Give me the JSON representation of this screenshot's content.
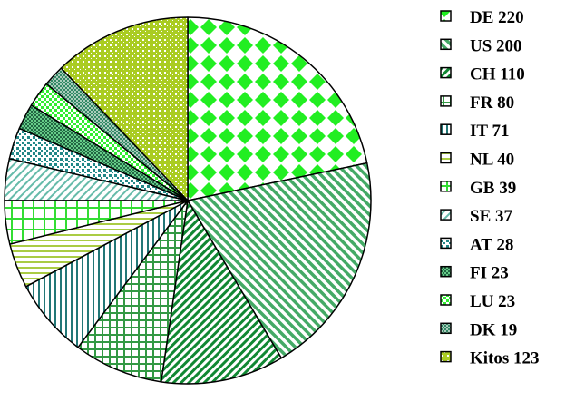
{
  "chart_data": {
    "type": "pie",
    "start_angle_deg": 0,
    "direction": "clockwise",
    "legend_position": "right",
    "slices": [
      {
        "label": "DE",
        "value": 220,
        "legend": "DE 220",
        "pattern": "diamonds",
        "fg": "#22ee22",
        "bg": "#ffffff"
      },
      {
        "label": "US",
        "value": 200,
        "legend": "US 200",
        "pattern": "diag-up",
        "fg": "#44aa66",
        "bg": "#ffffff"
      },
      {
        "label": "CH",
        "value": 110,
        "legend": "CH 110",
        "pattern": "diag-down-dense",
        "fg": "#118833",
        "bg": "#ffffff"
      },
      {
        "label": "FR",
        "value": 80,
        "legend": "FR 80",
        "pattern": "grid",
        "fg": "#339944",
        "bg": "#ffffff"
      },
      {
        "label": "IT",
        "value": 71,
        "legend": "IT 71",
        "pattern": "vertical",
        "fg": "#227777",
        "bg": "#ffffff"
      },
      {
        "label": "NL",
        "value": 40,
        "legend": "NL 40",
        "pattern": "horizontal",
        "fg": "#aacc44",
        "bg": "#ffffff"
      },
      {
        "label": "GB",
        "value": 39,
        "legend": "GB 39",
        "pattern": "grid-wide",
        "fg": "#33dd33",
        "bg": "#ffffff"
      },
      {
        "label": "SE",
        "value": 37,
        "legend": "SE 37",
        "pattern": "diag-down-light",
        "fg": "#66bbaa",
        "bg": "#ffffff"
      },
      {
        "label": "AT",
        "value": 28,
        "legend": "AT 28",
        "pattern": "dots-dark",
        "fg": "#228888",
        "bg": "#ffffff"
      },
      {
        "label": "FI",
        "value": 23,
        "legend": "FI 23",
        "pattern": "checker-dark",
        "fg": "#226644",
        "bg": "#66cc88"
      },
      {
        "label": "LU",
        "value": 23,
        "legend": "LU 23",
        "pattern": "checker",
        "fg": "#33ee33",
        "bg": "#ffffff"
      },
      {
        "label": "DK",
        "value": 19,
        "legend": "DK 19",
        "pattern": "checker-fine",
        "fg": "#338866",
        "bg": "#aaccbb"
      },
      {
        "label": "Kitos",
        "value": 123,
        "legend": "Kitos 123",
        "pattern": "dots-olive",
        "fg": "#ffffff",
        "bg": "#aacc22"
      }
    ]
  }
}
